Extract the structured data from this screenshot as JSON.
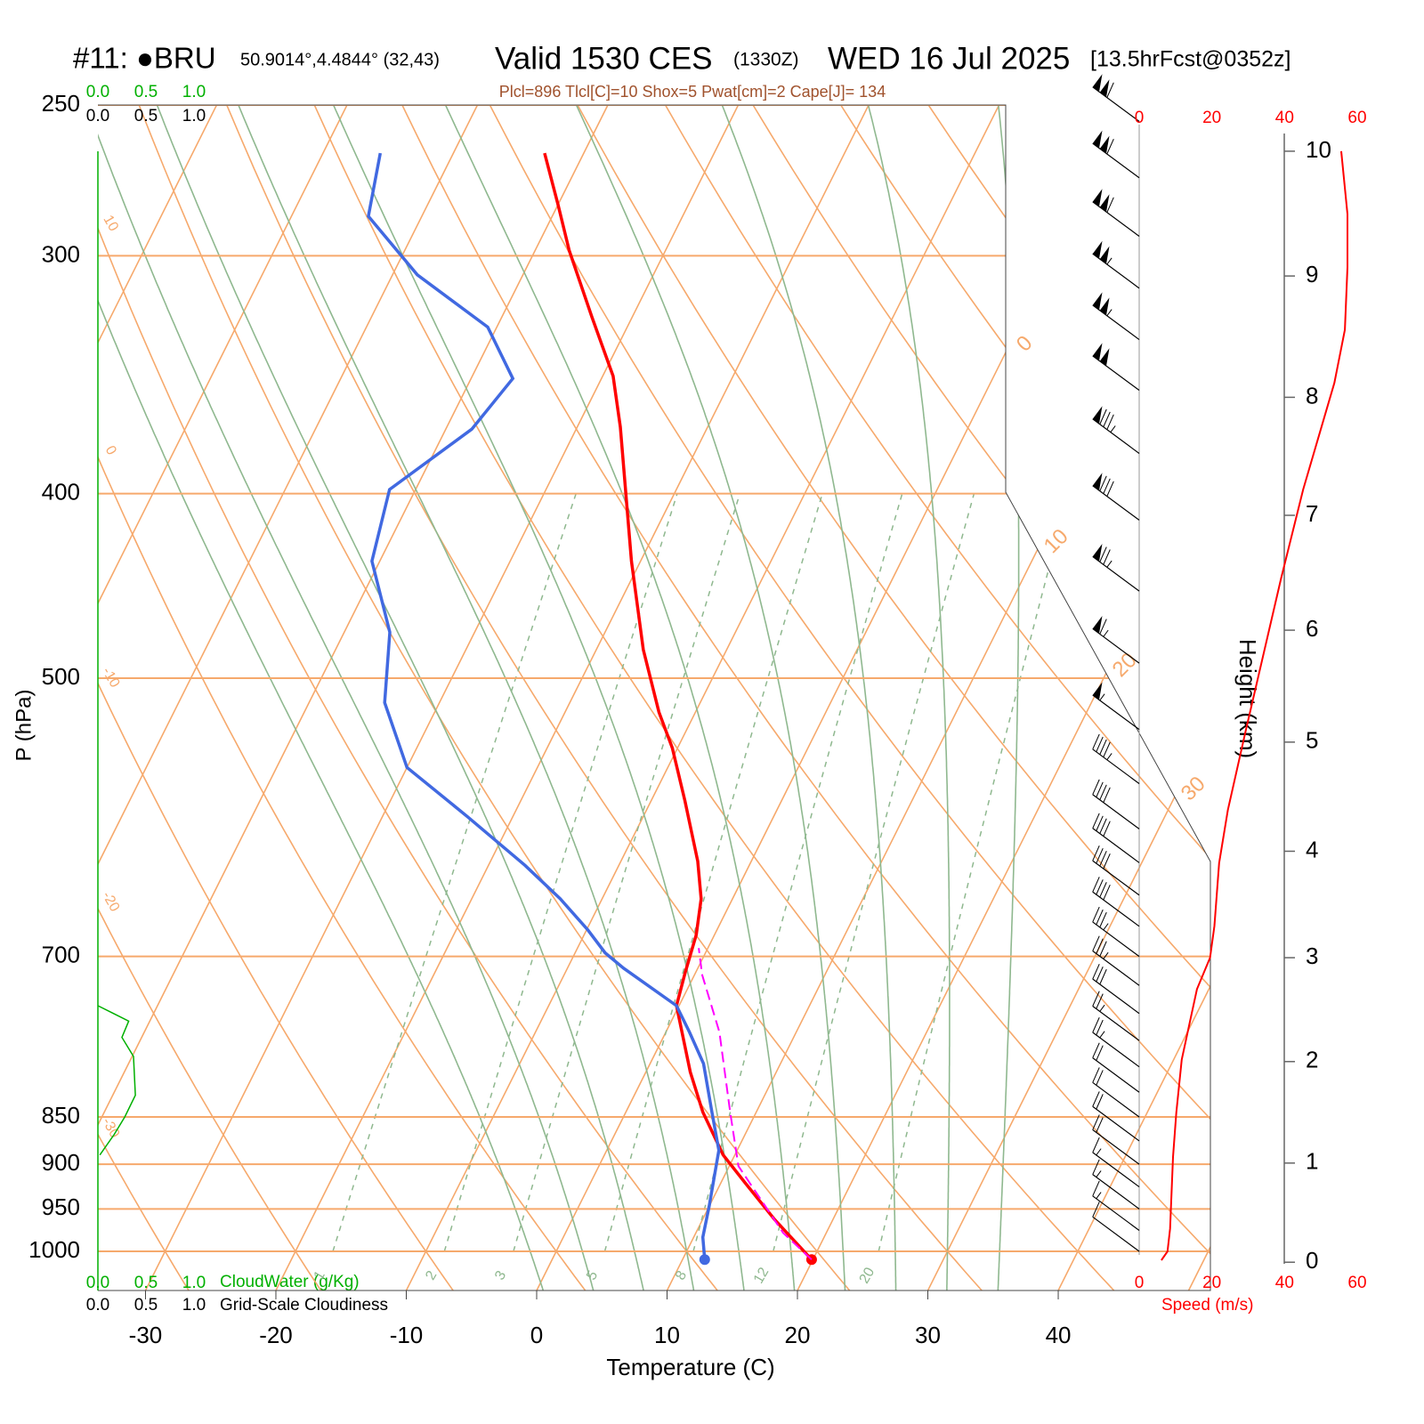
{
  "header": {
    "station": "#11: ●BRU",
    "coords": "50.9014°,4.4844° (32,43)",
    "valid": "Valid 1530 CES",
    "utc": "(1330Z)",
    "date": "WED 16 Jul 2025",
    "forecast": "[13.5hrFcst@0352z]"
  },
  "chart_data": {
    "type": "skewt",
    "subtitle": "Plcl=896 Tlcl[C]=10 Shox=5 Pwat[cm]=2 Cape[J]= 134",
    "x_label": "Temperature (C)",
    "y_label": "P (hPa)",
    "xlim": [
      -33.65,
      51.67
    ],
    "xticks": [
      -30,
      -20,
      -10,
      0,
      10,
      20,
      30,
      40
    ],
    "ylim": [
      1048.5,
      250
    ],
    "yticks": [
      250,
      300,
      400,
      500,
      700,
      850,
      900,
      950,
      1000
    ],
    "log_y": true,
    "series": [
      {
        "color": "#ff0000",
        "pressure": [
          1010,
          962,
          921,
          890,
          845,
          805,
          743,
          714,
          682,
          653,
          624,
          580,
          544,
          521,
          483,
          434,
          369,
          347,
          323,
          298,
          282,
          265
        ],
        "values": [
          19.9,
          15.5,
          11.9,
          9.1,
          5.9,
          3.4,
          -0.2,
          -0.8,
          -1.4,
          -2.4,
          -4.1,
          -7.4,
          -10.4,
          -12.8,
          -16.4,
          -20.7,
          -26.7,
          -29.2,
          -33.1,
          -37.4,
          -40.0,
          -43.0
        ]
      },
      {
        "color": "#4169e1",
        "pressure": [
          1010,
          983,
          947,
          885,
          845,
          797,
          767,
          743,
          710,
          697,
          678,
          653,
          627,
          591,
          557,
          515,
          473,
          434,
          398,
          370,
          348,
          327,
          307,
          286,
          265
        ],
        "values": [
          11.7,
          10.7,
          10.0,
          8.6,
          6.6,
          4.1,
          1.8,
          -0.2,
          -5.7,
          -7.7,
          -9.9,
          -13.2,
          -17.2,
          -23.5,
          -30.0,
          -34.2,
          -36.5,
          -40.6,
          -42.0,
          -38.0,
          -36.8,
          -40.7,
          -48.1,
          -54.1,
          -55.6
        ]
      },
      {
        "color": "#ff00ff",
        "dashed": true,
        "pressure": [
          1010,
          978,
          902,
          845,
          767,
          716,
          693
        ],
        "values": [
          19.9,
          16.7,
          10.7,
          8.0,
          4.1,
          0.6,
          -0.7
        ]
      }
    ],
    "isotherm_labels": [
      0,
      10,
      20,
      30
    ],
    "dry_adiabat_labels": [
      10,
      0,
      -10,
      -20,
      -30
    ],
    "mixing_ratio_lines": [
      1,
      2,
      3,
      5,
      8,
      12,
      20
    ],
    "wind_barbs": {
      "pressure": [
        255,
        273,
        293,
        312,
        332,
        353,
        381,
        413,
        450,
        491,
        532,
        568,
        600,
        625,
        650,
        675,
        700,
        725,
        750,
        775,
        800,
        825,
        850,
        875,
        900,
        925,
        950,
        975,
        1000
      ],
      "speed": [
        110,
        110,
        110,
        105,
        105,
        100,
        85,
        80,
        75,
        65,
        55,
        45,
        40,
        40,
        40,
        40,
        38,
        35,
        30,
        28,
        25,
        22,
        22,
        20,
        20,
        18,
        18,
        16,
        12
      ]
    },
    "cloud": {
      "cloudwater_label": "CloudWater (g/Kg)",
      "cloudiness_label": "Grid-Scale Cloudiness",
      "color": "#00b000",
      "xlim": [
        0,
        1
      ],
      "xticks": [
        {
          "value": 0,
          "label": "0.0"
        },
        {
          "value": 0.5,
          "label": "0.5"
        },
        {
          "value": 1,
          "label": "1.0"
        }
      ],
      "pressure": [
        743,
        757,
        772,
        790,
        828,
        850,
        868,
        890
      ],
      "values": [
        0,
        0.32,
        0.25,
        0.37,
        0.39,
        0.28,
        0.17,
        0.02
      ]
    },
    "wind_profile": {
      "x_label": "Speed (m/s)",
      "y_label": "Height (km)",
      "color": "#ff0000",
      "xlim": [
        0,
        60
      ],
      "xticks": [
        0,
        20,
        40,
        60
      ],
      "yticks": [
        0,
        1,
        2,
        3,
        4,
        5,
        6,
        7,
        8,
        9,
        10
      ],
      "height": [
        0.02,
        0.11,
        0.34,
        1.06,
        1.5,
        2.02,
        2.7,
        3.0,
        3.3,
        3.89,
        4.38,
        5.1,
        6.45,
        7.22,
        8.12,
        8.56,
        9.07,
        9.5,
        10.0
      ],
      "values": [
        6.1,
        7.8,
        8.5,
        9.3,
        10.2,
        11.7,
        15.9,
        19.5,
        20.7,
        22.0,
        24.4,
        29.3,
        39.0,
        45.1,
        53.7,
        56.6,
        57.3,
        57.3,
        55.6
      ]
    }
  }
}
